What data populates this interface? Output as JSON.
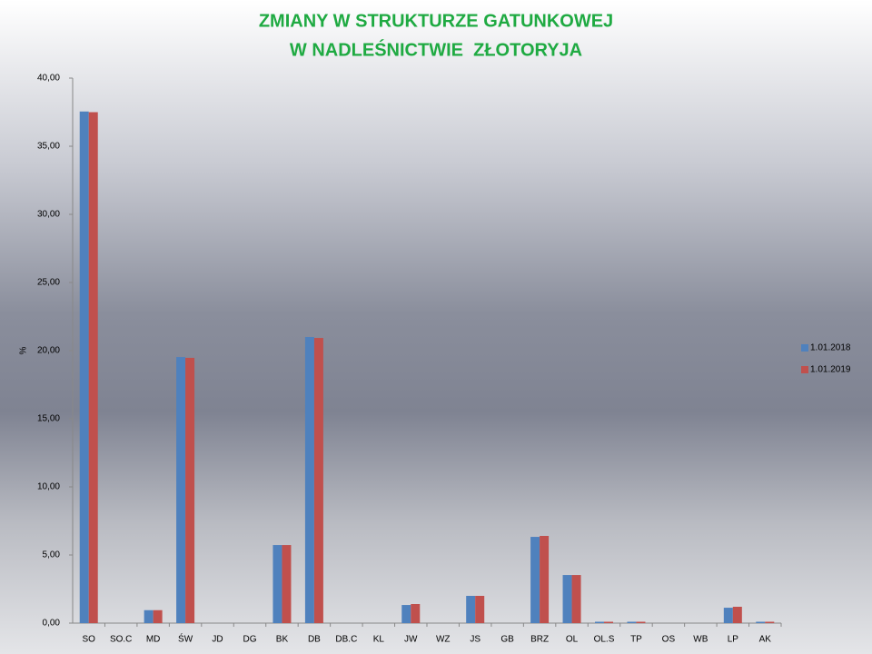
{
  "chart_data": {
    "type": "bar",
    "title": [
      "ZMIANY W STRUKTURZE GATUNKOWEJ",
      "W NADLEŚNICTWIE  ZŁOTORYJA"
    ],
    "y_label": "%",
    "categories": [
      "SO",
      "SO.C",
      "MD",
      "ŚW",
      "JD",
      "DG",
      "BK",
      "DB",
      "DB.C",
      "KL",
      "JW",
      "WZ",
      "JS",
      "GB",
      "BRZ",
      "OL",
      "OL.S",
      "TP",
      "OS",
      "WB",
      "LP",
      "AK"
    ],
    "series": [
      {
        "name": "1.01.2018",
        "color": "#4f81bd",
        "values": [
          37.55,
          0,
          0.95,
          19.53,
          0,
          0,
          5.73,
          21.0,
          0,
          0,
          1.33,
          0,
          2.0,
          0,
          6.33,
          3.53,
          0.1,
          0.1,
          0,
          0,
          1.13,
          0.1
        ]
      },
      {
        "name": "1.01.2019",
        "color": "#c0504d",
        "values": [
          37.5,
          0,
          0.95,
          19.47,
          0,
          0,
          5.73,
          20.93,
          0,
          0,
          1.4,
          0,
          2.0,
          0,
          6.4,
          3.53,
          0.1,
          0.1,
          0,
          0,
          1.2,
          0.1
        ]
      }
    ],
    "ylim": [
      0,
      40
    ],
    "yticks": [
      {
        "value": 0,
        "label": "0,00"
      },
      {
        "value": 5,
        "label": "5,00"
      },
      {
        "value": 10,
        "label": "10,00"
      },
      {
        "value": 15,
        "label": "15,00"
      },
      {
        "value": 20,
        "label": "20,00"
      },
      {
        "value": 25,
        "label": "25,00"
      },
      {
        "value": 30,
        "label": "30,00"
      },
      {
        "value": 35,
        "label": "35,00"
      },
      {
        "value": 40,
        "label": "40,00"
      }
    ],
    "legend": "right"
  }
}
